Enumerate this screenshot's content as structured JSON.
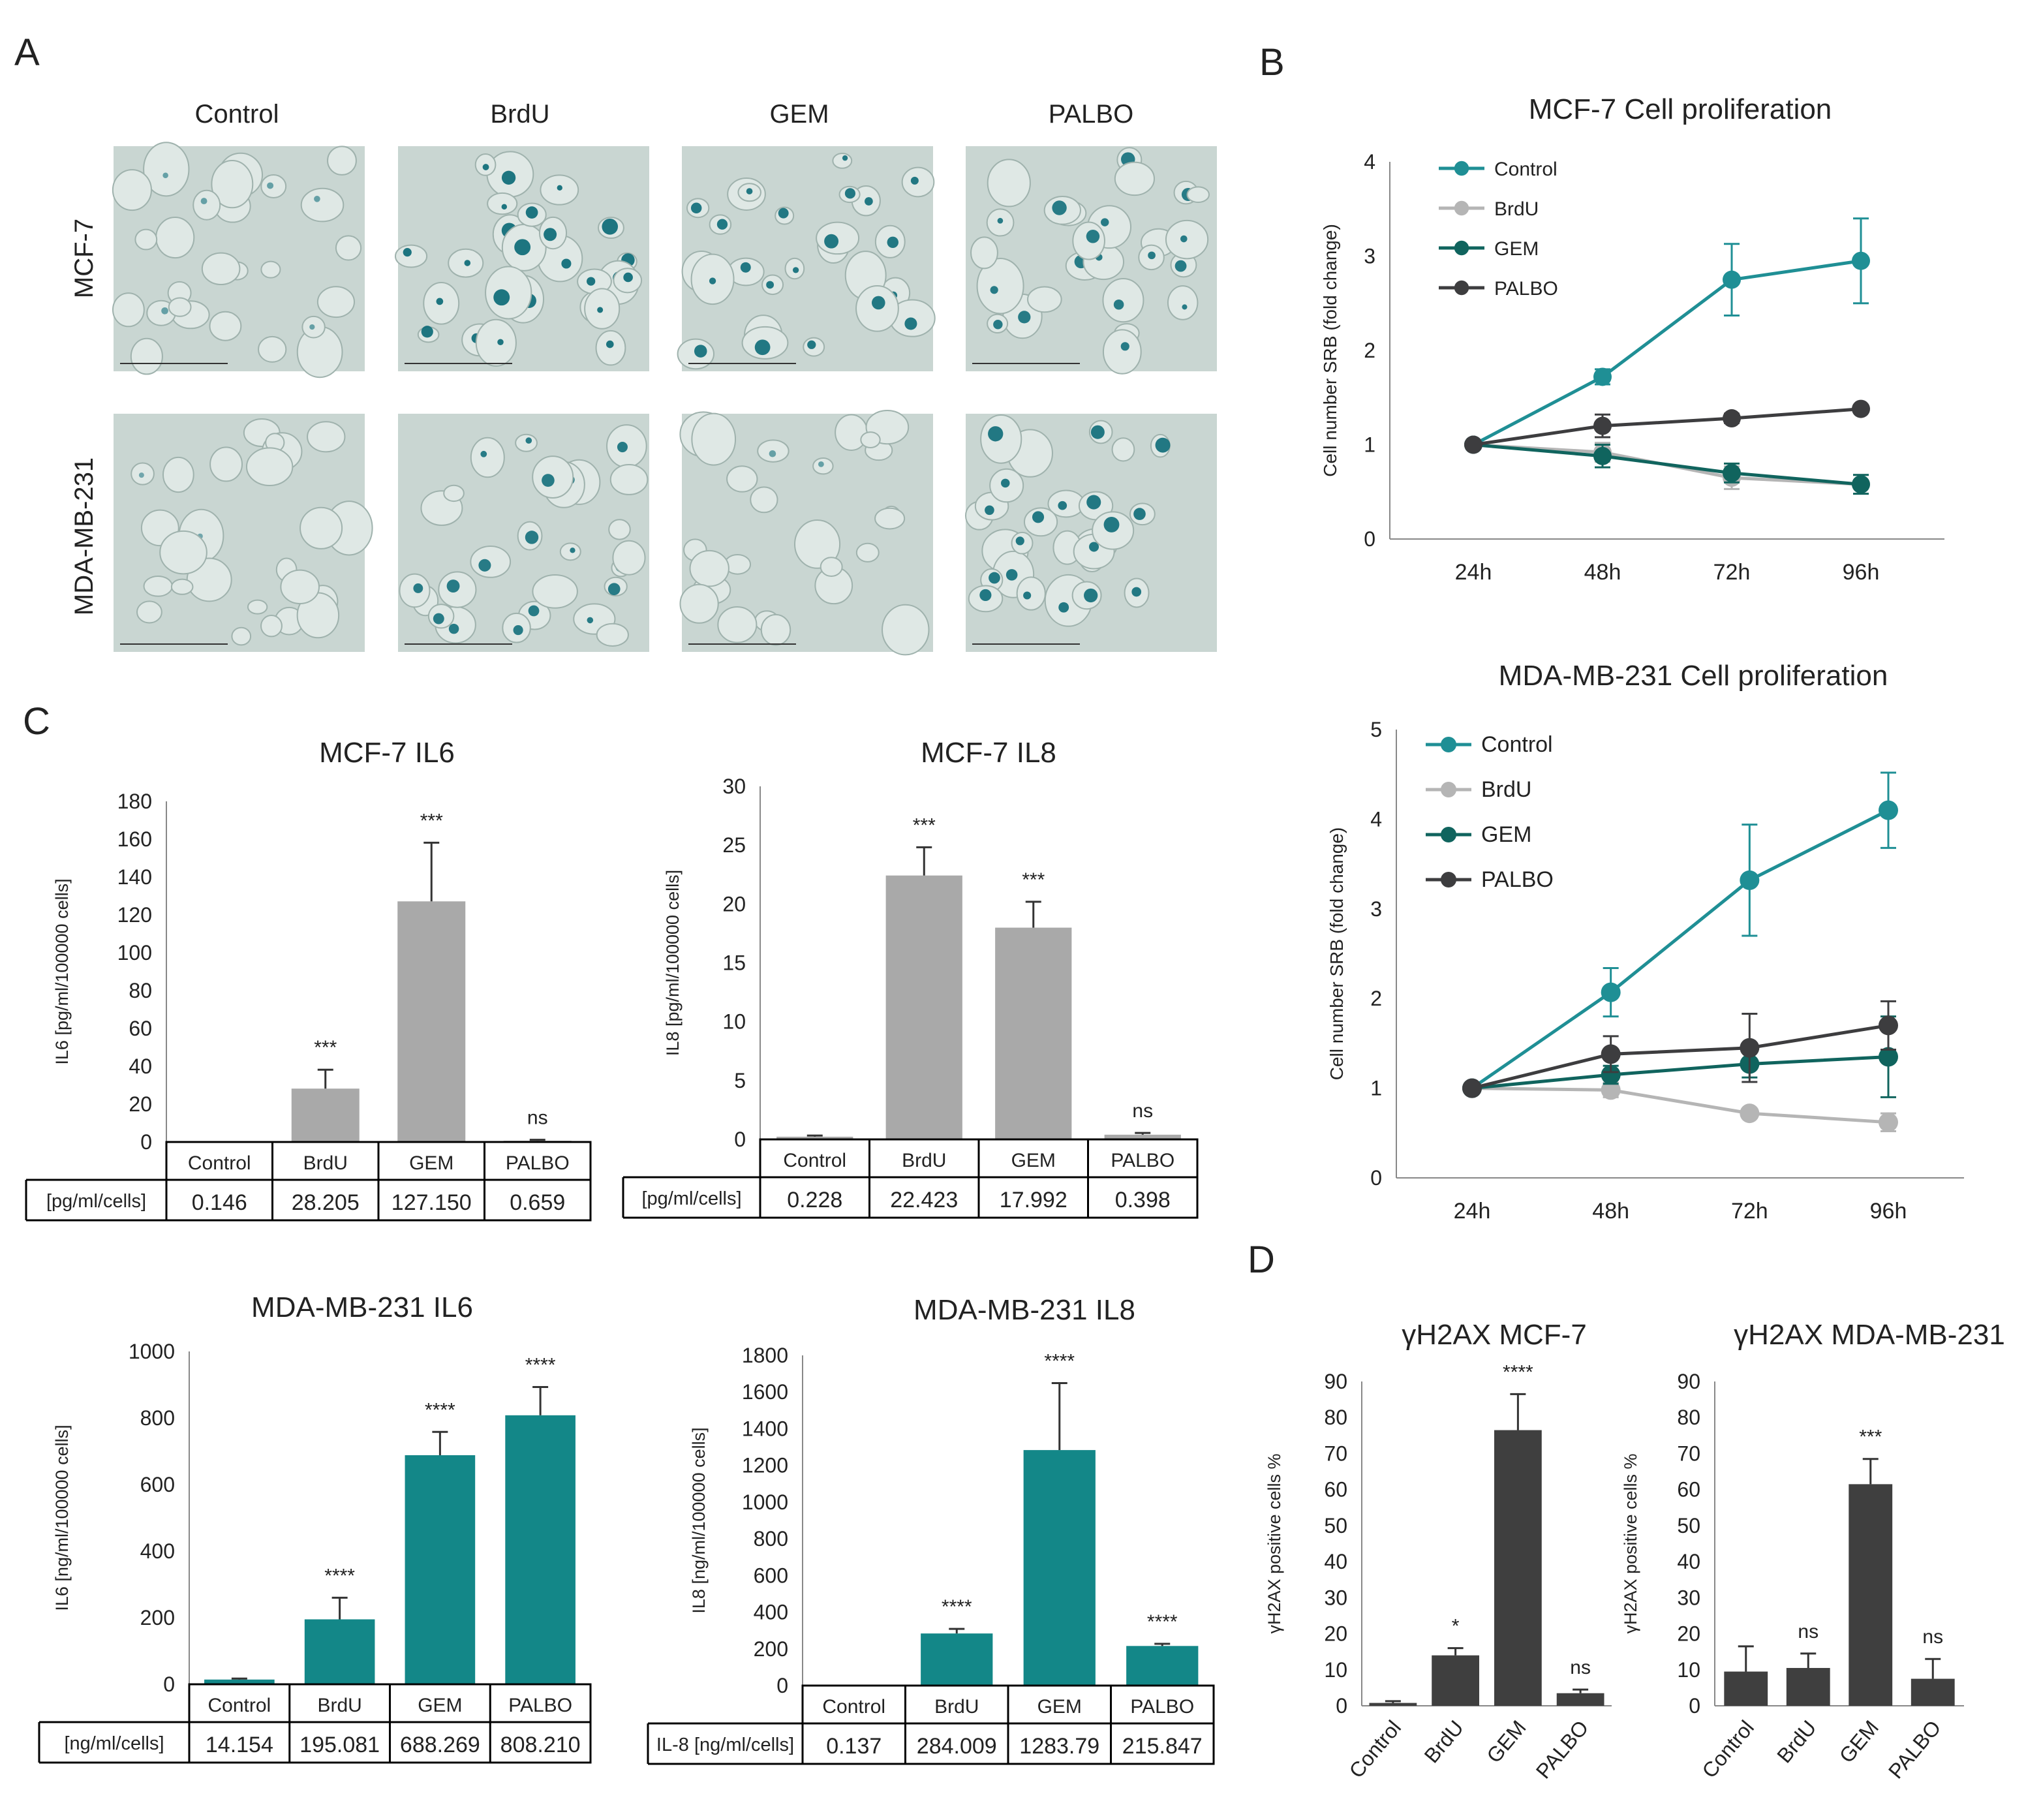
{
  "panel_letters": [
    "A",
    "B",
    "C",
    "D"
  ],
  "microscopy": {
    "columns": [
      "Control",
      "BrdU",
      "GEM",
      "PALBO"
    ],
    "rows": [
      "MCF-7",
      "MDA-MB-231"
    ],
    "intensity": [
      [
        0.15,
        0.85,
        0.8,
        0.75
      ],
      [
        0.05,
        0.75,
        0.15,
        0.8
      ]
    ],
    "tile_color": "#c9d6d2",
    "stain_color": "#0d6b78"
  },
  "colors": {
    "Control": "#1f8f95",
    "BrdU": "#b5b5b5",
    "GEM": "#10645e",
    "PALBO": "#3d3d3f",
    "bar_grey": "#a9a9a9",
    "bar_teal": "#138788",
    "bar_dark": "#3f3f3f"
  },
  "chart_data": [
    {
      "id": "b1",
      "type": "line",
      "title": "MCF-7 Cell proliferation",
      "ylabel": "Cell number SRB  (fold change)",
      "x": [
        "24h",
        "48h",
        "72h",
        "96h"
      ],
      "ylim": [
        0,
        4
      ],
      "yticks": [
        0,
        1,
        2,
        3,
        4
      ],
      "legend": "top-left",
      "series": [
        {
          "name": "Control",
          "values": [
            1,
            1.72,
            2.75,
            2.95
          ],
          "err": [
            0,
            0.08,
            0.38,
            0.45
          ]
        },
        {
          "name": "BrdU",
          "values": [
            1,
            0.92,
            0.65,
            0.58
          ],
          "err": [
            0,
            0.1,
            0.12,
            0.1
          ]
        },
        {
          "name": "GEM",
          "values": [
            1,
            0.88,
            0.7,
            0.58
          ],
          "err": [
            0,
            0.12,
            0.1,
            0.1
          ]
        },
        {
          "name": "PALBO",
          "values": [
            1,
            1.2,
            1.28,
            1.38
          ],
          "err": [
            0,
            0.12,
            0.05,
            0.04
          ]
        }
      ]
    },
    {
      "id": "b2",
      "type": "line",
      "title": "MDA-MB-231 Cell proliferation",
      "ylabel": "Cell number SRB (fold change)",
      "x": [
        "24h",
        "48h",
        "72h",
        "96h"
      ],
      "ylim": [
        0,
        5
      ],
      "yticks": [
        0,
        1,
        2,
        3,
        4,
        5
      ],
      "legend": "top-left",
      "series": [
        {
          "name": "Control",
          "values": [
            1,
            2.07,
            3.32,
            4.1
          ],
          "err": [
            0,
            0.27,
            0.62,
            0.42
          ]
        },
        {
          "name": "BrdU",
          "values": [
            1,
            0.98,
            0.72,
            0.62
          ],
          "err": [
            0,
            0.08,
            0.05,
            0.1
          ]
        },
        {
          "name": "GEM",
          "values": [
            1,
            1.15,
            1.27,
            1.35
          ],
          "err": [
            0,
            0.1,
            0.15,
            0.45
          ]
        },
        {
          "name": "PALBO",
          "values": [
            1,
            1.38,
            1.45,
            1.7
          ],
          "err": [
            0,
            0.2,
            0.38,
            0.27
          ]
        }
      ]
    },
    {
      "id": "c1",
      "type": "bar",
      "title": "MCF-7 IL6",
      "ylabel": "IL6 [pg/ml/100000 cells]",
      "categories": [
        "Control",
        "BrdU",
        "GEM",
        "PALBO"
      ],
      "values": [
        0.146,
        28.205,
        127.15,
        0.659
      ],
      "err": [
        0,
        10,
        31,
        0.5
      ],
      "sig": [
        "",
        "***",
        "***",
        "ns"
      ],
      "ylim": [
        0,
        180
      ],
      "yticks": [
        0,
        20,
        40,
        60,
        80,
        100,
        120,
        140,
        160,
        180
      ],
      "table_label": "[pg/ml/cells]",
      "table_values": [
        "0.146",
        "28.205",
        "127.150",
        "0.659"
      ],
      "color": "#a9a9a9"
    },
    {
      "id": "c2",
      "type": "bar",
      "title": "MCF-7 IL8",
      "ylabel": "IL8 [pg/ml/100000 cells]",
      "categories": [
        "Control",
        "BrdU",
        "GEM",
        "PALBO"
      ],
      "values": [
        0.228,
        22.423,
        17.992,
        0.398
      ],
      "err": [
        0.1,
        2.4,
        2.2,
        0.15
      ],
      "sig": [
        "",
        "***",
        "***",
        "ns"
      ],
      "ylim": [
        0,
        30
      ],
      "yticks": [
        0,
        5,
        10,
        15,
        20,
        25,
        30
      ],
      "table_label": "[pg/ml/cells]",
      "table_values": [
        "0.228",
        "22.423",
        "17.992",
        "0.398"
      ],
      "color": "#a9a9a9"
    },
    {
      "id": "c3",
      "type": "bar",
      "title": "MDA-MB-231 IL6",
      "ylabel": "IL6 [ng/ml/100000 cells]",
      "categories": [
        "Control",
        "BrdU",
        "GEM",
        "PALBO"
      ],
      "values": [
        14.154,
        195.081,
        688.269,
        808.21
      ],
      "err": [
        3,
        65,
        70,
        85
      ],
      "sig": [
        "",
        "****",
        "****",
        "****"
      ],
      "ylim": [
        0,
        1000
      ],
      "yticks": [
        0,
        200,
        400,
        600,
        800,
        1000
      ],
      "table_label": "[ng/ml/cells]",
      "table_values": [
        "14.154",
        "195.081",
        "688.269",
        "808.210"
      ],
      "color": "#138788"
    },
    {
      "id": "c4",
      "type": "bar",
      "title": "MDA-MB-231 IL8",
      "ylabel": "IL8 [ng/ml/100000 cells]",
      "categories": [
        "Control",
        "BrdU",
        "GEM",
        "PALBO"
      ],
      "values": [
        0.137,
        284.009,
        1283.79,
        215.847
      ],
      "err": [
        0,
        25,
        365,
        12
      ],
      "sig": [
        "",
        "****",
        "****",
        "****"
      ],
      "ylim": [
        0,
        1800
      ],
      "yticks": [
        0,
        200,
        400,
        600,
        800,
        1000,
        1200,
        1400,
        1600,
        1800
      ],
      "table_label": "IL-8 [ng/ml/cells]",
      "table_values": [
        "0.137",
        "284.009",
        "1283.79",
        "215.847"
      ],
      "color": "#138788"
    },
    {
      "id": "d1",
      "type": "bar",
      "title": "γH2AX MCF-7",
      "ylabel": "γH2AX positive cells %",
      "categories": [
        "Control",
        "BrdU",
        "GEM",
        "PALBO"
      ],
      "values": [
        0.8,
        14,
        76.5,
        3.5
      ],
      "err": [
        0.5,
        2,
        10,
        1
      ],
      "sig": [
        "",
        "*",
        "****",
        "ns"
      ],
      "ylim": [
        0,
        90
      ],
      "yticks": [
        0,
        10,
        20,
        30,
        40,
        50,
        60,
        70,
        80,
        90
      ],
      "color": "#3f3f3f"
    },
    {
      "id": "d2",
      "type": "bar",
      "title": "γH2AX MDA-MB-231",
      "ylabel": "γH2AX positive cells %",
      "categories": [
        "Control",
        "BrdU",
        "GEM",
        "PALBO"
      ],
      "values": [
        9.5,
        10.5,
        61.5,
        7.5
      ],
      "err": [
        7,
        4,
        7,
        5.5
      ],
      "sig": [
        "",
        "ns",
        "***",
        "ns"
      ],
      "ylim": [
        0,
        90
      ],
      "yticks": [
        0,
        10,
        20,
        30,
        40,
        50,
        60,
        70,
        80,
        90
      ],
      "color": "#3f3f3f"
    }
  ]
}
